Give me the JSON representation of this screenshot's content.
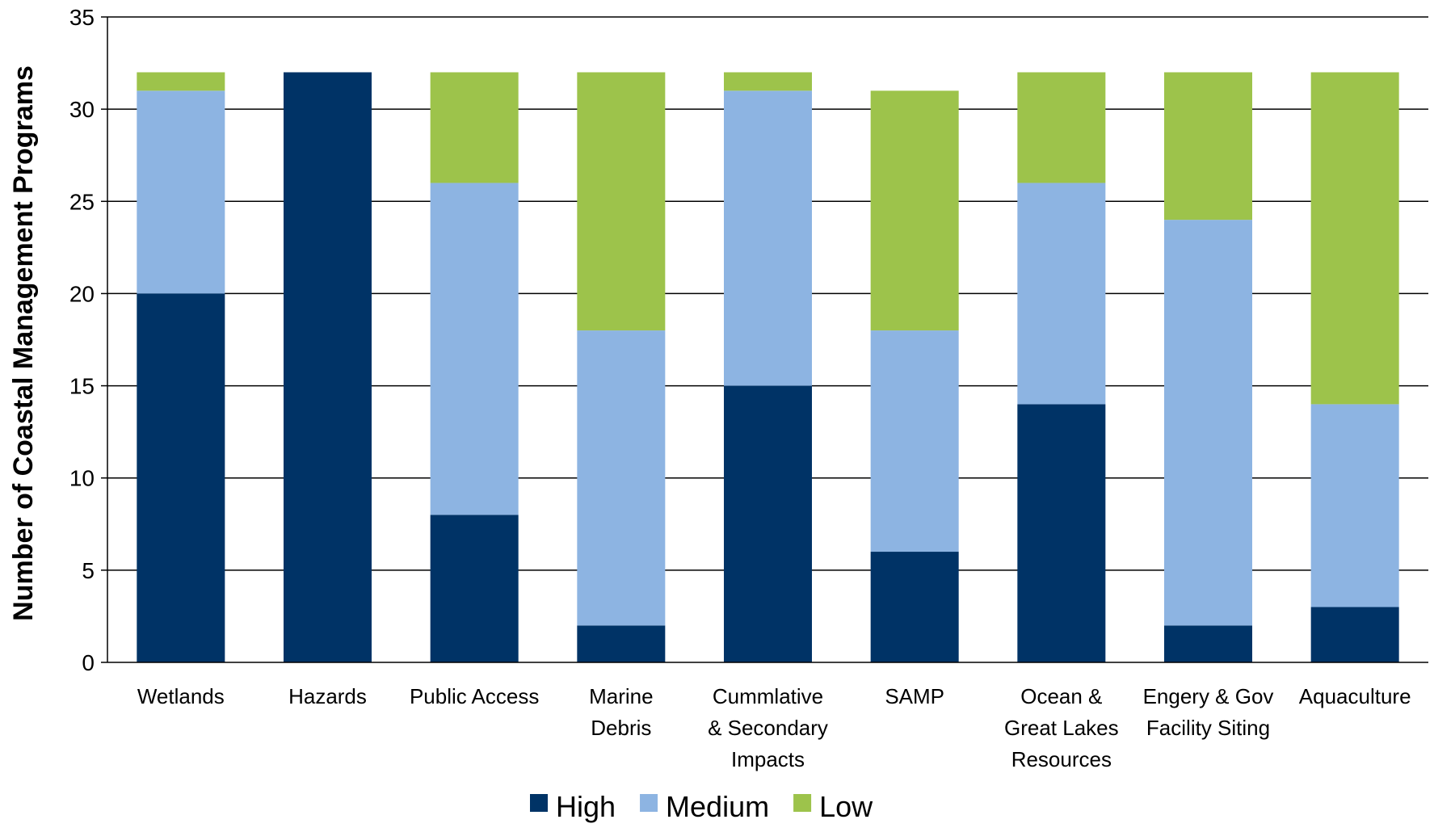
{
  "chart_data": {
    "type": "bar",
    "stacked": true,
    "title": "",
    "xlabel": "",
    "ylabel": "Number of Coastal Management Programs",
    "ylim": [
      0,
      35
    ],
    "yticks": [
      0,
      5,
      10,
      15,
      20,
      25,
      30,
      35
    ],
    "grid": true,
    "legend_position": "bottom",
    "categories": [
      [
        "Wetlands"
      ],
      [
        "Hazards"
      ],
      [
        "Public Access"
      ],
      [
        "Marine",
        "Debris"
      ],
      [
        "Cummlative",
        "& Secondary",
        "Impacts"
      ],
      [
        "SAMP"
      ],
      [
        "Ocean &",
        "Great Lakes",
        "Resources"
      ],
      [
        "Engery & Gov",
        "Facility Siting"
      ],
      [
        "Aquaculture"
      ]
    ],
    "series": [
      {
        "name": "High",
        "color": "#003366",
        "values": [
          20,
          32,
          8,
          2,
          15,
          6,
          14,
          2,
          3
        ]
      },
      {
        "name": "Medium",
        "color": "#8db4e2",
        "values": [
          11,
          0,
          18,
          16,
          16,
          12,
          12,
          22,
          11
        ]
      },
      {
        "name": "Low",
        "color": "#9dc34b",
        "values": [
          1,
          0,
          6,
          14,
          1,
          13,
          6,
          8,
          18
        ]
      }
    ]
  }
}
